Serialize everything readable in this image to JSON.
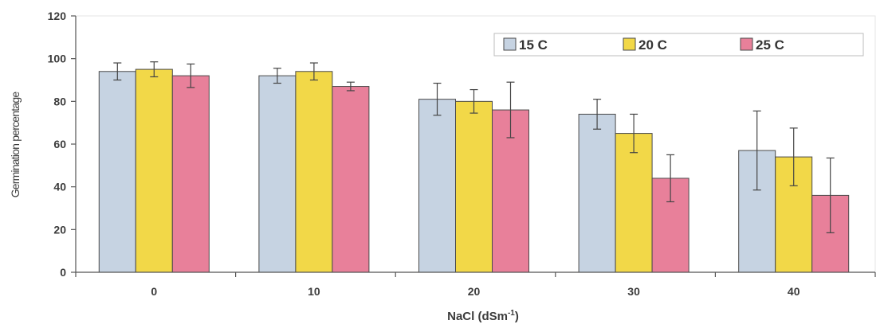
{
  "chart_data": {
    "type": "bar",
    "title": "",
    "xlabel_main": "NaCl (dSm",
    "xlabel_sup": "-1",
    "xlabel_end": ")",
    "ylabel": "Germination percentage",
    "ylim": [
      0,
      120
    ],
    "yticks": [
      0,
      20,
      40,
      60,
      80,
      100,
      120
    ],
    "categories": [
      "0",
      "10",
      "20",
      "30",
      "40"
    ],
    "grid": false,
    "legend_position": "top-right",
    "series": [
      {
        "name": "15 C",
        "color": "#c6d3e2",
        "values": [
          94,
          92,
          81,
          74,
          57
        ],
        "errors": [
          4,
          3.5,
          7.5,
          7,
          18.5
        ]
      },
      {
        "name": "20 C",
        "color": "#f2d848",
        "values": [
          95,
          94,
          80,
          65,
          54
        ],
        "errors": [
          3.5,
          4,
          5.5,
          9,
          13.5
        ]
      },
      {
        "name": "25 C",
        "color": "#e8809a",
        "values": [
          92,
          87,
          76,
          44,
          36
        ],
        "errors": [
          5.5,
          2,
          13,
          11,
          17.5
        ]
      }
    ]
  }
}
